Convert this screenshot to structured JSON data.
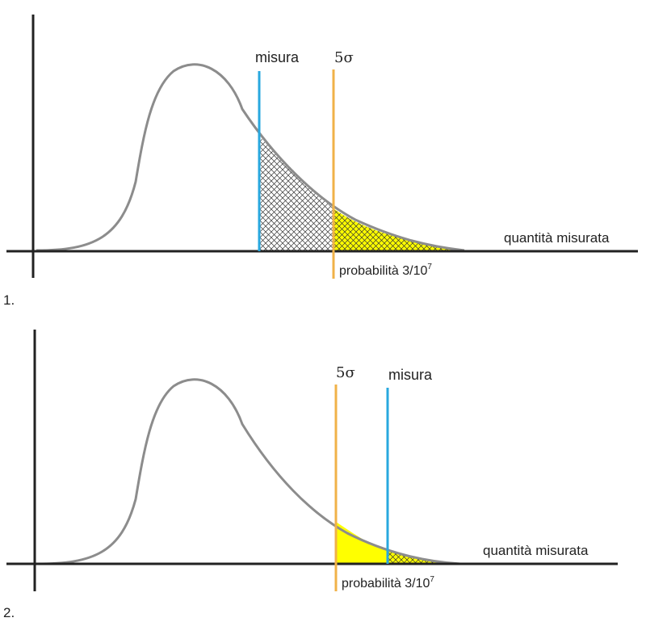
{
  "panels": [
    {
      "number_label": "1.",
      "axis_label": "quantità misurata",
      "measure_label": "misura",
      "sigma_label": "5σ",
      "probability_prefix": "probabilità 3/10",
      "probability_exponent": "7"
    },
    {
      "number_label": "2.",
      "axis_label": "quantità misurata",
      "measure_label": "misura",
      "sigma_label": "5σ",
      "probability_prefix": "probabilità 3/10",
      "probability_exponent": "7"
    }
  ],
  "colors": {
    "axis": "#222222",
    "curve": "#8c8c8c",
    "measure_line": "#29a8df",
    "sigma_line": "#f0b248",
    "tail_fill": "#ffff00",
    "hatch": "#333333"
  }
}
